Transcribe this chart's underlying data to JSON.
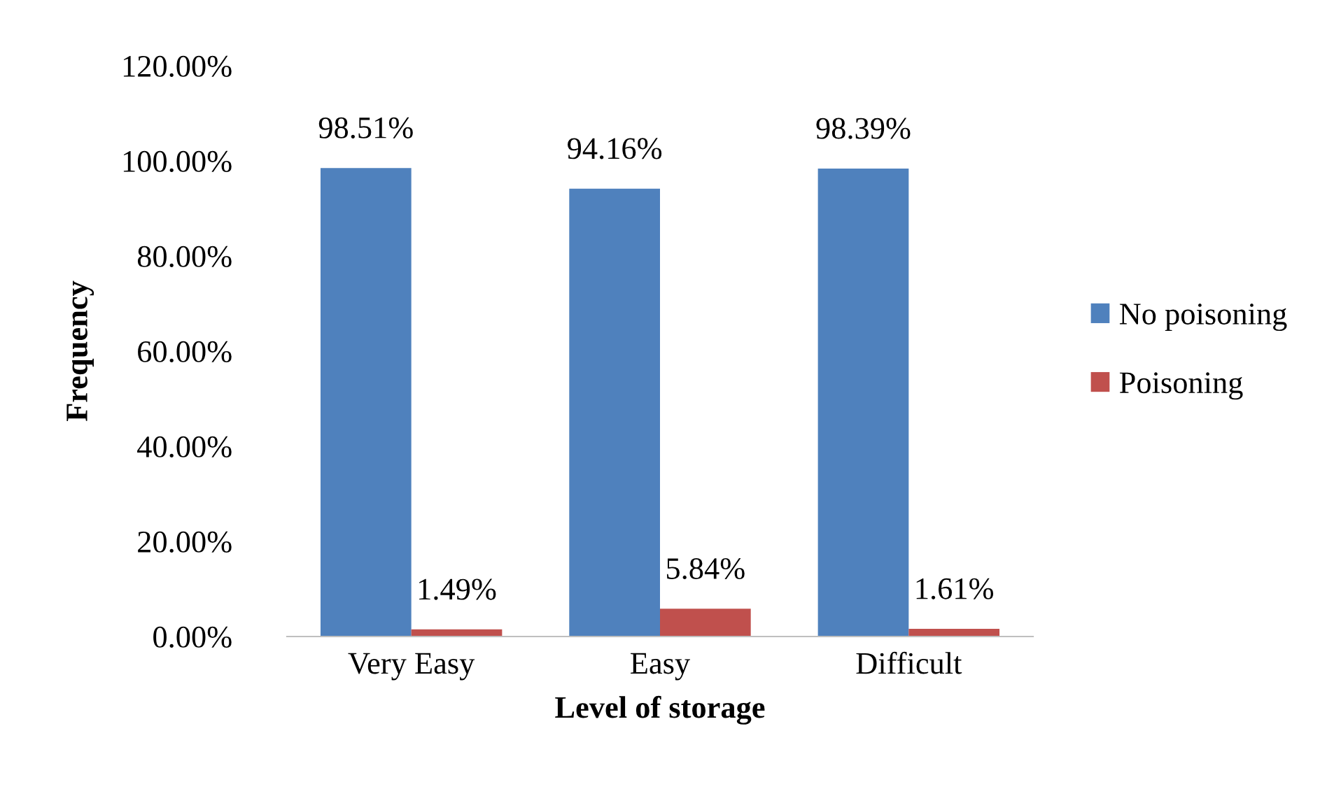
{
  "chart_data": {
    "type": "bar",
    "xlabel": "Level of storage",
    "ylabel": "Frequency",
    "categories": [
      "Very Easy",
      "Easy",
      "Difficult"
    ],
    "series": [
      {
        "name": "No poisoning",
        "color": "#4f81bd",
        "values": [
          98.51,
          94.16,
          98.39
        ],
        "value_labels": [
          "98.51%",
          "94.16%",
          "98.39%"
        ]
      },
      {
        "name": "Poisoning",
        "color": "#c0504d",
        "values": [
          1.49,
          5.84,
          1.61
        ],
        "value_labels": [
          "1.49%",
          "5.84%",
          "1.61%"
        ]
      }
    ],
    "ylim": [
      0,
      120
    ],
    "yticks": [
      {
        "value": 0,
        "label": "0.00%"
      },
      {
        "value": 20,
        "label": "20.00%"
      },
      {
        "value": 40,
        "label": "40.00%"
      },
      {
        "value": 60,
        "label": "60.00%"
      },
      {
        "value": 80,
        "label": "80.00%"
      },
      {
        "value": 100,
        "label": "100.00%"
      },
      {
        "value": 120,
        "label": "120.00%"
      }
    ],
    "grid": false,
    "legend": "right"
  }
}
